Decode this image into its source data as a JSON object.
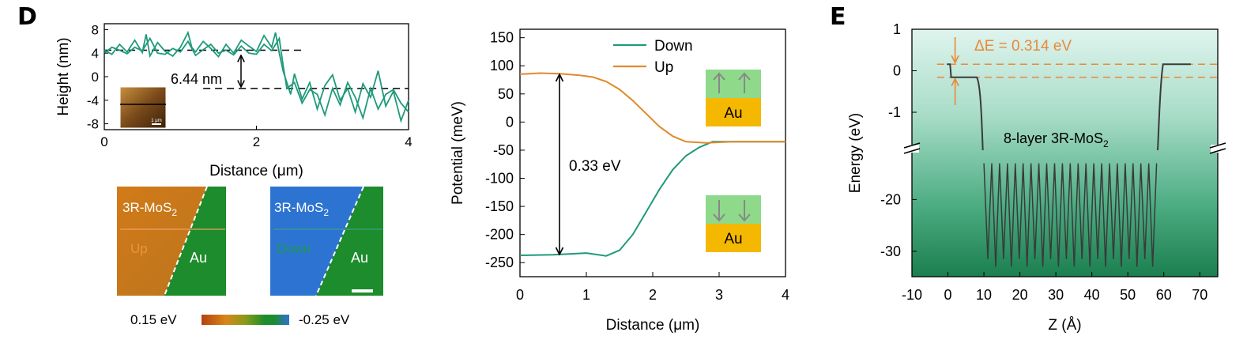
{
  "panel_labels": {
    "d": "D",
    "e": "E"
  },
  "colors": {
    "green": "#1e9a7a",
    "orange": "#e08a2c",
    "orange_dashed": "#e8893a",
    "energy_line": "#3a3a3a",
    "gold": "#f5b800",
    "spin_green": "#8ed98a",
    "map_orange": "#d2781c",
    "map_green": "#1c8c2c",
    "map_blue": "#2d73d2"
  },
  "chart_data": [
    {
      "id": "height_profile",
      "type": "line",
      "xlabel": "Distance (μm)",
      "ylabel": "Height (nm)",
      "xlim": [
        0,
        4
      ],
      "ylim": [
        -9,
        9
      ],
      "xticks": [
        "0",
        "2",
        "4"
      ],
      "yticks": [
        "8",
        "4",
        "0",
        "-4",
        "-8"
      ],
      "series": [
        {
          "x": [
            0,
            0.1,
            0.2,
            0.3,
            0.4,
            0.5,
            0.55,
            0.6,
            0.7,
            0.8,
            0.9,
            1.0,
            1.1,
            1.15,
            1.2,
            1.3,
            1.4,
            1.5,
            1.6,
            1.7,
            1.8,
            1.9,
            2.0,
            2.1,
            2.2,
            2.25,
            2.3,
            2.35,
            2.4,
            2.45,
            2.5,
            2.6,
            2.7,
            2.8,
            2.9,
            3.0,
            3.1,
            3.2,
            3.3,
            3.4,
            3.5,
            3.6,
            3.7,
            3.8,
            3.9,
            4.0
          ],
          "y": [
            4.5,
            3.8,
            5.5,
            4.2,
            6.2,
            4.1,
            7.2,
            3.5,
            5.8,
            4.3,
            3.5,
            5.0,
            7.5,
            5.0,
            4.2,
            6.0,
            4.8,
            3.4,
            5.5,
            4.0,
            6.2,
            5.2,
            4.3,
            7.0,
            5.0,
            7.5,
            4.0,
            1.0,
            -1.0,
            -3.0,
            0.5,
            -3.8,
            -1.0,
            -5.5,
            -1.5,
            0.3,
            -4.0,
            -2.0,
            -6.0,
            -1.2,
            -3.5,
            1.0,
            -5.0,
            -2.5,
            -7.5,
            -4.0
          ]
        },
        {
          "x": [
            0,
            0.1,
            0.2,
            0.3,
            0.4,
            0.5,
            0.6,
            0.7,
            0.8,
            0.9,
            1.0,
            1.1,
            1.2,
            1.3,
            1.4,
            1.5,
            1.6,
            1.7,
            1.8,
            1.9,
            2.0,
            2.1,
            2.2,
            2.3,
            2.35,
            2.4,
            2.5,
            2.6,
            2.7,
            2.8,
            2.9,
            3.0,
            3.1,
            3.2,
            3.3,
            3.4,
            3.5,
            3.6,
            3.7,
            3.8,
            3.9,
            4.0
          ],
          "y": [
            4.0,
            5.0,
            4.5,
            3.9,
            5.0,
            4.4,
            6.5,
            4.0,
            3.8,
            4.8,
            4.2,
            6.0,
            3.6,
            4.6,
            5.5,
            4.0,
            4.5,
            3.7,
            5.2,
            4.0,
            3.8,
            5.5,
            4.4,
            6.5,
            2.0,
            -2.0,
            -1.0,
            -4.5,
            -2.2,
            -3.0,
            -6.5,
            -2.0,
            -4.8,
            -1.0,
            -3.5,
            -7.0,
            -2.0,
            -5.5,
            -3.0,
            -2.2,
            -4.5,
            -6.0
          ]
        }
      ],
      "annotations": {
        "step_height": "6.44 nm",
        "scale_bar": "1 μm"
      }
    },
    {
      "id": "kpfm_maps",
      "type": "heatmap",
      "maps": [
        {
          "material": "3R-MoS",
          "material_sub": "2",
          "region": "Up",
          "substrate": "Au"
        },
        {
          "material": "3R-MoS",
          "material_sub": "2",
          "region": "Down",
          "substrate": "Au"
        }
      ],
      "colorbar": {
        "min_label": "0.15 eV",
        "max_label": "-0.25 eV"
      }
    },
    {
      "id": "potential_profile",
      "type": "line",
      "xlabel": "Distance (μm)",
      "ylabel": "Potential (meV)",
      "xlim": [
        0,
        4
      ],
      "ylim": [
        -275,
        165
      ],
      "xticks": [
        "0",
        "1",
        "2",
        "3",
        "4"
      ],
      "yticks": [
        "150",
        "100",
        "50",
        "0",
        "-50",
        "-100",
        "-150",
        "-200",
        "-250"
      ],
      "series": [
        {
          "name": "Down",
          "x": [
            0,
            0.5,
            1.0,
            1.3,
            1.5,
            1.7,
            1.9,
            2.1,
            2.3,
            2.5,
            2.7,
            2.9,
            3.2,
            4.0
          ],
          "y": [
            -237,
            -236,
            -233,
            -238,
            -228,
            -200,
            -160,
            -120,
            -85,
            -60,
            -45,
            -35,
            -35,
            -35
          ]
        },
        {
          "name": "Up",
          "x": [
            0,
            0.3,
            0.6,
            0.9,
            1.1,
            1.3,
            1.5,
            1.7,
            1.9,
            2.1,
            2.3,
            2.5,
            2.8,
            3.2,
            4.0
          ],
          "y": [
            85,
            87,
            86,
            83,
            80,
            72,
            58,
            38,
            15,
            -8,
            -25,
            -35,
            -37,
            -35,
            -35
          ]
        }
      ],
      "annotations": {
        "difference": "0.33 eV",
        "substrate": "Au"
      }
    },
    {
      "id": "band_energy",
      "type": "line",
      "xlabel": "Z (Å)",
      "ylabel": "Energy (eV)",
      "xlim": [
        -10,
        75
      ],
      "xticks": [
        "-10",
        "0",
        "10",
        "20",
        "30",
        "40",
        "50",
        "60",
        "70"
      ],
      "yticks_upper": [
        "1",
        "0",
        "-1"
      ],
      "yticks_lower": [
        "-20",
        "-30"
      ],
      "axis_break": true,
      "levels": {
        "upper": 0.157,
        "lower": -0.157
      },
      "annotations": {
        "delta_e": "ΔE = 0.314 eV",
        "structure": "8-layer 3R-MoS",
        "structure_sub": "2"
      }
    }
  ]
}
